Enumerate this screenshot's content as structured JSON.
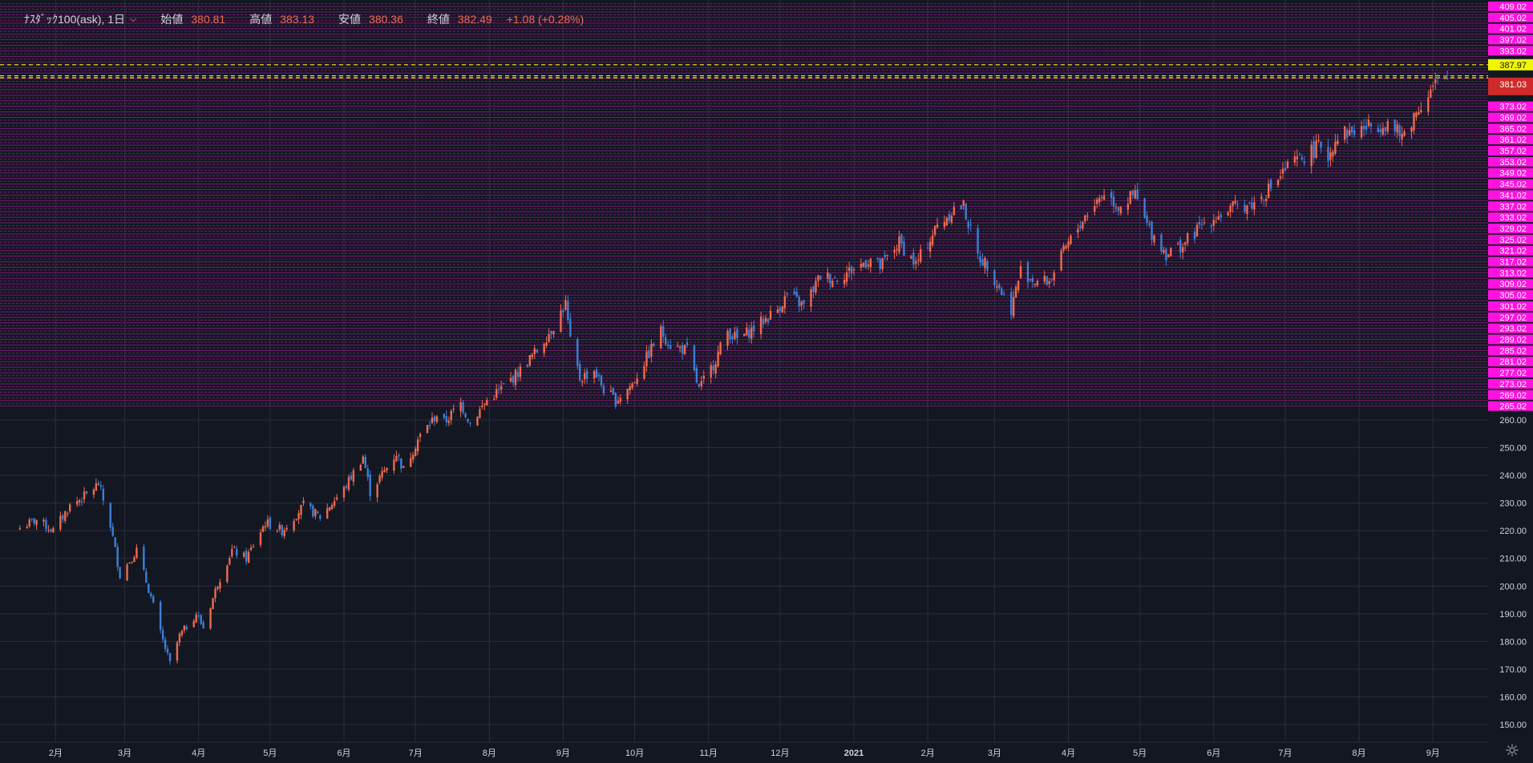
{
  "legend": {
    "symbol": "ﾅｽﾀﾞｯｸ100(ask), 1日",
    "open_label": "始値",
    "open": "380.81",
    "high_label": "高値",
    "high": "383.13",
    "low_label": "安値",
    "low": "380.36",
    "close_label": "終値",
    "close": "382.49",
    "change": "+1.08 (+0.28%)"
  },
  "colors": {
    "background": "#131722",
    "up": "#ef6a4e",
    "down": "#3d7fd6",
    "grid": "#2a2e39",
    "level_line": "#b31ba3",
    "level_label_bg": "#ff12e0",
    "yellow_label_bg": "#f1f500",
    "red_label_bg": "#d02a2a"
  },
  "price_labels": {
    "yellow": "387.97",
    "red": "381.03"
  },
  "chart_data": {
    "type": "candlestick",
    "x_ticks": [
      "2月",
      "3月",
      "4月",
      "5月",
      "6月",
      "7月",
      "8月",
      "9月",
      "10月",
      "11月",
      "12月",
      "2021",
      "2月",
      "3月",
      "4月",
      "5月",
      "6月",
      "7月",
      "8月",
      "9月"
    ],
    "y_ticks": [
      "150.00",
      "160.00",
      "170.00",
      "180.00",
      "190.00",
      "200.00",
      "210.00",
      "220.00",
      "230.00",
      "240.00",
      "250.00",
      "260.00"
    ],
    "level_ticks": [
      "409.02",
      "405.02",
      "401.02",
      "397.02",
      "393.02",
      "373.02",
      "369.02",
      "365.02",
      "361.02",
      "357.02",
      "353.02",
      "349.02",
      "345.02",
      "341.02",
      "337.02",
      "333.02",
      "329.02",
      "325.02",
      "321.02",
      "317.02",
      "313.02",
      "309.02",
      "305.02",
      "301.02",
      "297.02",
      "293.02",
      "289.02",
      "285.02",
      "281.02",
      "277.02",
      "273.02",
      "269.02",
      "265.02"
    ],
    "ylim": [
      145,
      410
    ],
    "yellow_dashed_lines": [
      387.97,
      384.0,
      383.3
    ],
    "path": [
      {
        "date": "2020-01-17",
        "v": 221
      },
      {
        "date": "2020-01-24",
        "v": 224
      },
      {
        "date": "2020-01-31",
        "v": 220
      },
      {
        "date": "2020-02-07",
        "v": 229
      },
      {
        "date": "2020-02-14",
        "v": 233
      },
      {
        "date": "2020-02-19",
        "v": 237
      },
      {
        "date": "2020-02-24",
        "v": 222
      },
      {
        "date": "2020-02-28",
        "v": 204
      },
      {
        "date": "2020-03-06",
        "v": 213
      },
      {
        "date": "2020-03-12",
        "v": 196
      },
      {
        "date": "2020-03-16",
        "v": 183
      },
      {
        "date": "2020-03-20",
        "v": 172
      },
      {
        "date": "2020-03-24",
        "v": 182
      },
      {
        "date": "2020-03-31",
        "v": 190
      },
      {
        "date": "2020-04-03",
        "v": 185
      },
      {
        "date": "2020-04-09",
        "v": 201
      },
      {
        "date": "2020-04-15",
        "v": 213
      },
      {
        "date": "2020-04-21",
        "v": 210
      },
      {
        "date": "2020-04-29",
        "v": 223
      },
      {
        "date": "2020-05-06",
        "v": 220
      },
      {
        "date": "2020-05-15",
        "v": 229
      },
      {
        "date": "2020-05-22",
        "v": 225
      },
      {
        "date": "2020-06-01",
        "v": 235
      },
      {
        "date": "2020-06-09",
        "v": 247
      },
      {
        "date": "2020-06-12",
        "v": 234
      },
      {
        "date": "2020-06-23",
        "v": 248
      },
      {
        "date": "2020-06-26",
        "v": 242
      },
      {
        "date": "2020-07-02",
        "v": 253
      },
      {
        "date": "2020-07-10",
        "v": 262
      },
      {
        "date": "2020-07-13",
        "v": 259
      },
      {
        "date": "2020-07-20",
        "v": 266
      },
      {
        "date": "2020-07-24",
        "v": 259
      },
      {
        "date": "2020-07-31",
        "v": 267
      },
      {
        "date": "2020-08-07",
        "v": 272
      },
      {
        "date": "2020-08-14",
        "v": 278
      },
      {
        "date": "2020-08-21",
        "v": 285
      },
      {
        "date": "2020-08-28",
        "v": 294
      },
      {
        "date": "2020-09-02",
        "v": 302
      },
      {
        "date": "2020-09-04",
        "v": 288
      },
      {
        "date": "2020-09-08",
        "v": 275
      },
      {
        "date": "2020-09-14",
        "v": 278
      },
      {
        "date": "2020-09-18",
        "v": 271
      },
      {
        "date": "2020-09-23",
        "v": 267
      },
      {
        "date": "2020-09-30",
        "v": 273
      },
      {
        "date": "2020-10-12",
        "v": 292
      },
      {
        "date": "2020-10-16",
        "v": 287
      },
      {
        "date": "2020-10-23",
        "v": 285
      },
      {
        "date": "2020-10-28",
        "v": 271
      },
      {
        "date": "2020-11-03",
        "v": 280
      },
      {
        "date": "2020-11-09",
        "v": 292
      },
      {
        "date": "2020-11-13",
        "v": 289
      },
      {
        "date": "2020-11-20",
        "v": 293
      },
      {
        "date": "2020-11-30",
        "v": 300
      },
      {
        "date": "2020-12-04",
        "v": 305
      },
      {
        "date": "2020-12-11",
        "v": 301
      },
      {
        "date": "2020-12-18",
        "v": 312
      },
      {
        "date": "2020-12-24",
        "v": 311
      },
      {
        "date": "2020-12-31",
        "v": 314
      },
      {
        "date": "2021-01-08",
        "v": 318
      },
      {
        "date": "2021-01-12",
        "v": 315
      },
      {
        "date": "2021-01-20",
        "v": 324
      },
      {
        "date": "2021-01-27",
        "v": 316
      },
      {
        "date": "2021-02-05",
        "v": 330
      },
      {
        "date": "2021-02-12",
        "v": 336
      },
      {
        "date": "2021-02-16",
        "v": 337
      },
      {
        "date": "2021-02-22",
        "v": 319
      },
      {
        "date": "2021-02-26",
        "v": 316
      },
      {
        "date": "2021-03-04",
        "v": 306
      },
      {
        "date": "2021-03-08",
        "v": 300
      },
      {
        "date": "2021-03-12",
        "v": 314
      },
      {
        "date": "2021-03-18",
        "v": 310
      },
      {
        "date": "2021-03-24",
        "v": 310
      },
      {
        "date": "2021-03-31",
        "v": 322
      },
      {
        "date": "2021-04-09",
        "v": 335
      },
      {
        "date": "2021-04-16",
        "v": 342
      },
      {
        "date": "2021-04-22",
        "v": 337
      },
      {
        "date": "2021-04-29",
        "v": 341
      },
      {
        "date": "2021-05-04",
        "v": 330
      },
      {
        "date": "2021-05-12",
        "v": 320
      },
      {
        "date": "2021-05-19",
        "v": 323
      },
      {
        "date": "2021-05-28",
        "v": 331
      },
      {
        "date": "2021-06-04",
        "v": 334
      },
      {
        "date": "2021-06-11",
        "v": 337
      },
      {
        "date": "2021-06-18",
        "v": 338
      },
      {
        "date": "2021-06-25",
        "v": 344
      },
      {
        "date": "2021-07-02",
        "v": 351
      },
      {
        "date": "2021-07-09",
        "v": 355
      },
      {
        "date": "2021-07-16",
        "v": 359
      },
      {
        "date": "2021-07-19",
        "v": 355
      },
      {
        "date": "2021-07-23",
        "v": 363
      },
      {
        "date": "2021-07-30",
        "v": 364
      },
      {
        "date": "2021-08-06",
        "v": 366
      },
      {
        "date": "2021-08-13",
        "v": 367
      },
      {
        "date": "2021-08-19",
        "v": 362
      },
      {
        "date": "2021-08-27",
        "v": 374
      },
      {
        "date": "2021-09-02",
        "v": 381
      },
      {
        "date": "2021-09-07",
        "v": 382.49
      }
    ]
  }
}
